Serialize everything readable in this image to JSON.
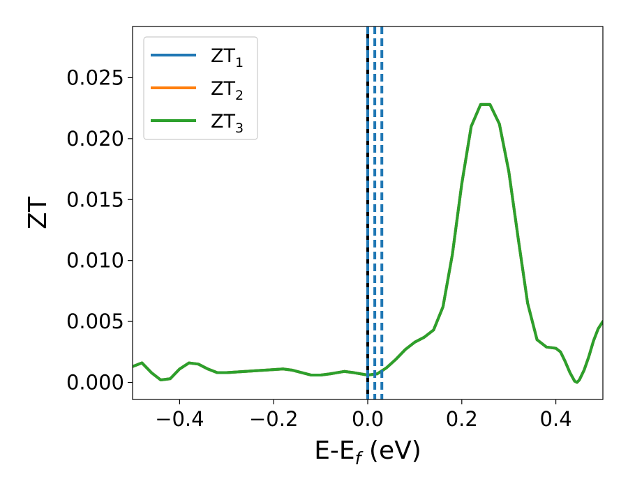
{
  "chart_data": {
    "type": "line",
    "title": "",
    "xlabel": {
      "main": "E-E",
      "sub": "f",
      "rest": " (eV)"
    },
    "ylabel": "ZT",
    "xlim": [
      -0.5,
      0.5
    ],
    "ylim": [
      -0.0014,
      0.0292
    ],
    "x_ticks": [
      {
        "value": -0.4,
        "label": "−0.4"
      },
      {
        "value": -0.2,
        "label": "−0.2"
      },
      {
        "value": 0.0,
        "label": "0.0"
      },
      {
        "value": 0.2,
        "label": "0.2"
      },
      {
        "value": 0.4,
        "label": "0.4"
      }
    ],
    "y_ticks": [
      {
        "value": 0.0,
        "label": "0.000"
      },
      {
        "value": 0.005,
        "label": "0.005"
      },
      {
        "value": 0.01,
        "label": "0.010"
      },
      {
        "value": 0.015,
        "label": "0.015"
      },
      {
        "value": 0.02,
        "label": "0.020"
      },
      {
        "value": 0.025,
        "label": "0.025"
      }
    ],
    "grid": false,
    "legend_position": "top-left",
    "x": [
      -0.5,
      -0.48,
      -0.46,
      -0.44,
      -0.42,
      -0.4,
      -0.38,
      -0.36,
      -0.34,
      -0.32,
      -0.3,
      -0.26,
      -0.22,
      -0.18,
      -0.16,
      -0.14,
      -0.12,
      -0.1,
      -0.08,
      -0.05,
      -0.03,
      0.0,
      0.02,
      0.04,
      0.06,
      0.08,
      0.1,
      0.12,
      0.14,
      0.16,
      0.18,
      0.2,
      0.22,
      0.24,
      0.26,
      0.28,
      0.3,
      0.32,
      0.34,
      0.36,
      0.38,
      0.4,
      0.41,
      0.42,
      0.43,
      0.44,
      0.445,
      0.45,
      0.46,
      0.47,
      0.48,
      0.49,
      0.5
    ],
    "series": [
      {
        "name": {
          "main": "ZT",
          "sub": "1"
        },
        "color": "#1f77b4",
        "values": [
          0.0013,
          0.0016,
          0.0008,
          0.0002,
          0.0003,
          0.0011,
          0.0016,
          0.0015,
          0.0011,
          0.0008,
          0.0008,
          0.0009,
          0.001,
          0.0011,
          0.001,
          0.0008,
          0.0006,
          0.0006,
          0.0007,
          0.0009,
          0.0008,
          0.0006,
          0.0007,
          0.0012,
          0.0019,
          0.0027,
          0.0033,
          0.0037,
          0.0043,
          0.0062,
          0.0105,
          0.0163,
          0.021,
          0.0228,
          0.0228,
          0.0212,
          0.0173,
          0.0118,
          0.0065,
          0.0035,
          0.0029,
          0.0028,
          0.0025,
          0.0017,
          0.0008,
          0.0001,
          0.0,
          0.0002,
          0.001,
          0.0021,
          0.0034,
          0.0044,
          0.005
        ]
      },
      {
        "name": {
          "main": "ZT",
          "sub": "2"
        },
        "color": "#ff7f0e",
        "values": [
          0.0013,
          0.0016,
          0.0008,
          0.0002,
          0.0003,
          0.0011,
          0.0016,
          0.0015,
          0.0011,
          0.0008,
          0.0008,
          0.0009,
          0.001,
          0.0011,
          0.001,
          0.0008,
          0.0006,
          0.0006,
          0.0007,
          0.0009,
          0.0008,
          0.0006,
          0.0007,
          0.0012,
          0.0019,
          0.0027,
          0.0033,
          0.0037,
          0.0043,
          0.0062,
          0.0105,
          0.0163,
          0.021,
          0.0228,
          0.0228,
          0.0212,
          0.0173,
          0.0118,
          0.0065,
          0.0035,
          0.0029,
          0.0028,
          0.0025,
          0.0017,
          0.0008,
          0.0001,
          0.0,
          0.0002,
          0.001,
          0.0021,
          0.0034,
          0.0044,
          0.005
        ]
      },
      {
        "name": {
          "main": "ZT",
          "sub": "3"
        },
        "color": "#2ca02c",
        "values": [
          0.0013,
          0.0016,
          0.0008,
          0.0002,
          0.0003,
          0.0011,
          0.0016,
          0.0015,
          0.0011,
          0.0008,
          0.0008,
          0.0009,
          0.001,
          0.0011,
          0.001,
          0.0008,
          0.0006,
          0.0006,
          0.0007,
          0.0009,
          0.0008,
          0.0006,
          0.0007,
          0.0012,
          0.0019,
          0.0027,
          0.0033,
          0.0037,
          0.0043,
          0.0062,
          0.0105,
          0.0163,
          0.021,
          0.0228,
          0.0228,
          0.0212,
          0.0173,
          0.0118,
          0.0065,
          0.0035,
          0.0029,
          0.0028,
          0.0025,
          0.0017,
          0.0008,
          0.0001,
          0.0,
          0.0002,
          0.001,
          0.0021,
          0.0034,
          0.0044,
          0.005
        ]
      }
    ],
    "vertical_lines": [
      {
        "x": 0.0,
        "color": "#000000",
        "style": "solid"
      },
      {
        "x": 0.0,
        "color": "#1f77b4",
        "style": "dashed"
      },
      {
        "x": 0.015,
        "color": "#1f77b4",
        "style": "dashed"
      },
      {
        "x": 0.03,
        "color": "#1f77b4",
        "style": "dashed"
      }
    ]
  }
}
